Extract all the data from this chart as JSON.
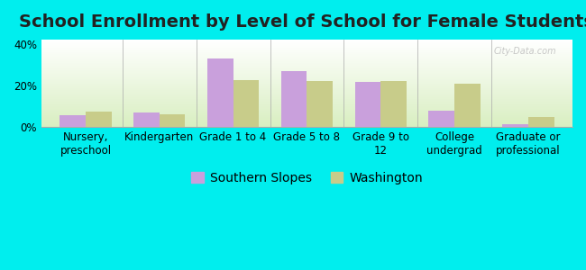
{
  "title": "School Enrollment by Level of School for Female Students",
  "categories": [
    "Nursery,\npreschool",
    "Kindergarten",
    "Grade 1 to 4",
    "Grade 5 to 8",
    "Grade 9 to\n12",
    "College\nundergrad",
    "Graduate or\nprofessional"
  ],
  "southern_slopes": [
    5.5,
    7.0,
    33.0,
    27.0,
    21.5,
    8.0,
    1.5
  ],
  "washington": [
    7.5,
    6.0,
    22.5,
    22.0,
    22.0,
    21.0,
    5.0
  ],
  "southern_slopes_color": "#c9a0dc",
  "washington_color": "#c8cc8a",
  "background_color": "#00eeee",
  "ylim": [
    0,
    42
  ],
  "yticks": [
    0,
    20,
    40
  ],
  "ytick_labels": [
    "0%",
    "20%",
    "40%"
  ],
  "bar_width": 0.35,
  "legend_southern": "Southern Slopes",
  "legend_washington": "Washington",
  "title_fontsize": 14,
  "tick_fontsize": 8.5,
  "legend_fontsize": 10
}
